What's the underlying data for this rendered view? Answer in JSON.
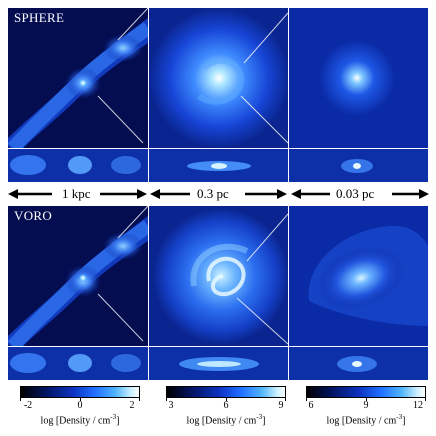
{
  "rows": {
    "top_label": "SPHERE",
    "bottom_label": "VORO"
  },
  "scales": [
    "1 kpc",
    "0.3 pc",
    "0.03 pc"
  ],
  "colorbars": [
    {
      "ticks": [
        "-2",
        "0",
        "2"
      ],
      "min": -2,
      "max": 2,
      "label_main": "log [Density / cm",
      "label_sup": "-3",
      "label_end": "]"
    },
    {
      "ticks": [
        "3",
        "6",
        "9"
      ],
      "min": 3,
      "max": 9,
      "label_main": "log [Density / cm",
      "label_sup": "-3",
      "label_end": "]"
    },
    {
      "ticks": [
        "6",
        "9",
        "12"
      ],
      "min": 6,
      "max": 12,
      "label_main": "log [Density / cm",
      "label_sup": "-3",
      "label_end": "]"
    }
  ],
  "colors": {
    "background_dark": "#030a3a",
    "mid_blue": "#0c32bf",
    "bright_blue": "#1f6dff",
    "highlight": "#c8efff"
  }
}
